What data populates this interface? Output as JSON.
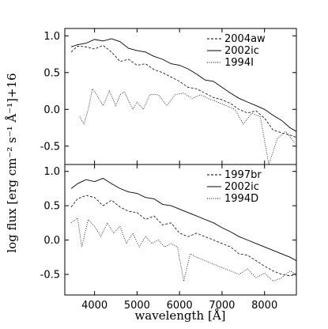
{
  "chart_data": {
    "type": "line",
    "xlabel": "wavelength [Å]",
    "ylabel": "log flux [erg cm⁻² s⁻¹ Å⁻¹]+16",
    "xlim": [
      3300,
      8750
    ],
    "xticks": [
      "4000",
      "5000",
      "6000",
      "7000",
      "8000"
    ],
    "xtick_values": [
      4000,
      5000,
      6000,
      7000,
      8000
    ],
    "panels": [
      {
        "ylim": [
          -0.75,
          1.1
        ],
        "yticks": [
          "1.0",
          "0.5",
          "0.0",
          "-0.5"
        ],
        "ytick_values": [
          1.0,
          0.5,
          0.0,
          -0.5
        ],
        "legend_position": "top-right",
        "series": [
          {
            "name": "2004aw",
            "style": "dashed",
            "x": [
              3450,
              3600,
              3800,
              4000,
              4200,
              4400,
              4600,
              4800,
              5000,
              5200,
              5400,
              5600,
              5800,
              6000,
              6200,
              6400,
              6600,
              6800,
              7000,
              7200,
              7400,
              7600,
              7800,
              8000,
              8200,
              8400,
              8600,
              8750
            ],
            "y": [
              0.78,
              0.86,
              0.85,
              0.82,
              0.87,
              0.78,
              0.65,
              0.68,
              0.6,
              0.62,
              0.54,
              0.5,
              0.44,
              0.38,
              0.3,
              0.28,
              0.22,
              0.16,
              0.13,
              0.08,
              0.0,
              -0.05,
              -0.02,
              -0.12,
              -0.28,
              -0.32,
              -0.35,
              -0.38
            ]
          },
          {
            "name": "2002ic",
            "style": "solid",
            "x": [
              3450,
              3600,
              3800,
              4000,
              4200,
              4400,
              4600,
              4800,
              5000,
              5200,
              5400,
              5600,
              5800,
              6000,
              6200,
              6400,
              6600,
              6800,
              7000,
              7200,
              7400,
              7600,
              7800,
              8000,
              8200,
              8400,
              8600,
              8750
            ],
            "y": [
              0.85,
              0.88,
              0.9,
              0.95,
              0.93,
              0.96,
              0.92,
              0.83,
              0.8,
              0.78,
              0.72,
              0.68,
              0.62,
              0.6,
              0.55,
              0.48,
              0.4,
              0.38,
              0.3,
              0.22,
              0.15,
              0.1,
              0.05,
              0.0,
              -0.08,
              -0.15,
              -0.25,
              -0.3
            ]
          },
          {
            "name": "1994I",
            "style": "dotted",
            "x": [
              3650,
              3750,
              3850,
              3950,
              4050,
              4200,
              4350,
              4500,
              4600,
              4700,
              4900,
              5000,
              5150,
              5300,
              5500,
              5700,
              5900,
              6100,
              6300,
              6500,
              6700,
              6900,
              7100,
              7300,
              7500,
              7700,
              7900,
              8100,
              8300,
              8500,
              8700
            ],
            "y": [
              -0.1,
              -0.2,
              0.0,
              0.28,
              0.2,
              0.05,
              0.25,
              0.05,
              0.2,
              0.24,
              0.0,
              0.1,
              0.0,
              0.2,
              0.2,
              0.05,
              0.2,
              0.22,
              0.15,
              0.2,
              0.14,
              0.1,
              0.05,
              0.0,
              -0.2,
              -0.05,
              -0.1,
              -0.75,
              -0.4,
              -0.3,
              -0.45
            ]
          }
        ]
      },
      {
        "ylim": [
          -0.8,
          1.1
        ],
        "yticks": [
          "1.0",
          "0.5",
          "0.0",
          "-0.5"
        ],
        "ytick_values": [
          1.0,
          0.5,
          0.0,
          -0.5
        ],
        "legend_position": "top-right",
        "series": [
          {
            "name": "1997br",
            "style": "dashed",
            "x": [
              3450,
              3600,
              3800,
              4000,
              4200,
              4400,
              4600,
              4800,
              5000,
              5200,
              5400,
              5600,
              5800,
              6000,
              6200,
              6400,
              6600,
              6800,
              7000,
              7200,
              7400,
              7600,
              7800,
              8000,
              8200,
              8400,
              8600,
              8750
            ],
            "y": [
              0.48,
              0.6,
              0.65,
              0.62,
              0.5,
              0.58,
              0.48,
              0.42,
              0.4,
              0.3,
              0.35,
              0.22,
              0.25,
              0.1,
              0.05,
              0.1,
              0.05,
              0.0,
              -0.05,
              -0.1,
              -0.2,
              -0.22,
              -0.3,
              -0.38,
              -0.45,
              -0.5,
              -0.52,
              -0.5
            ]
          },
          {
            "name": "2002ic",
            "style": "solid",
            "x": [
              3450,
              3600,
              3800,
              4000,
              4200,
              4400,
              4600,
              4800,
              5000,
              5200,
              5400,
              5600,
              5800,
              6000,
              6200,
              6400,
              6600,
              6800,
              7000,
              7200,
              7400,
              7600,
              7800,
              8000,
              8200,
              8400,
              8600,
              8750
            ],
            "y": [
              0.75,
              0.82,
              0.88,
              0.85,
              0.9,
              0.82,
              0.75,
              0.7,
              0.68,
              0.62,
              0.6,
              0.52,
              0.5,
              0.45,
              0.4,
              0.35,
              0.3,
              0.25,
              0.18,
              0.12,
              0.05,
              0.0,
              -0.05,
              -0.1,
              -0.15,
              -0.2,
              -0.25,
              -0.3
            ]
          },
          {
            "name": "1994D",
            "style": "dotted",
            "x": [
              3450,
              3600,
              3700,
              3850,
              4000,
              4150,
              4300,
              4450,
              4600,
              4750,
              4900,
              5050,
              5200,
              5350,
              5500,
              5650,
              5800,
              5950,
              6100,
              6250,
              6400,
              6600,
              6800,
              7000,
              7200,
              7400,
              7600,
              7800,
              8000,
              8200,
              8400,
              8600,
              8750
            ],
            "y": [
              0.25,
              0.32,
              -0.1,
              0.3,
              0.2,
              0.05,
              0.25,
              0.1,
              0.2,
              -0.05,
              0.1,
              -0.1,
              0.05,
              -0.05,
              0.0,
              -0.1,
              -0.05,
              -0.1,
              -0.6,
              -0.2,
              -0.25,
              -0.3,
              -0.35,
              -0.4,
              -0.45,
              -0.5,
              -0.42,
              -0.55,
              -0.48,
              -0.6,
              -0.55,
              -0.45,
              -0.5
            ]
          }
        ]
      }
    ]
  }
}
